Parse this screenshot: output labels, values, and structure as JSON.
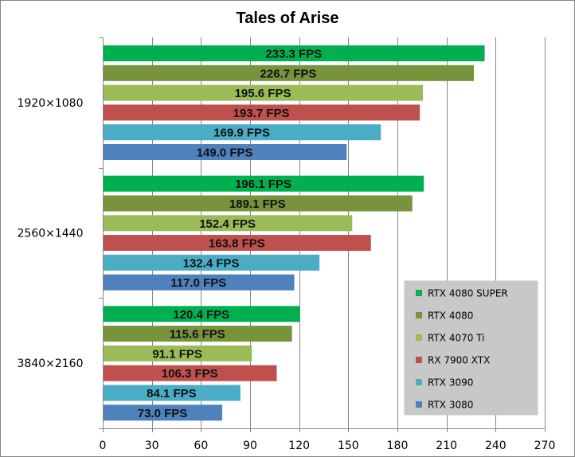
{
  "chart_data": {
    "type": "bar",
    "orientation": "horizontal",
    "title": "Tales of Arise",
    "xlabel": "",
    "ylabel": "",
    "xlim": [
      0,
      270
    ],
    "xticks": [
      0,
      30,
      60,
      90,
      120,
      150,
      180,
      210,
      240,
      270
    ],
    "grid": true,
    "legend_position": "bottom-right",
    "value_suffix": " FPS",
    "categories": [
      "1920×1080",
      "2560×1440",
      "3840×2160"
    ],
    "series": [
      {
        "name": "RTX 4080 SUPER",
        "color": "#00b050",
        "values": [
          233.3,
          196.1,
          120.4
        ]
      },
      {
        "name": "RTX 4080",
        "color": "#77933c",
        "values": [
          226.7,
          189.1,
          115.6
        ]
      },
      {
        "name": "RTX 4070 Ti",
        "color": "#9bbb59",
        "values": [
          195.6,
          152.4,
          91.1
        ]
      },
      {
        "name": "RX 7900 XTX",
        "color": "#c0504d",
        "values": [
          193.7,
          163.8,
          106.3
        ]
      },
      {
        "name": "RTX 3090",
        "color": "#4bacc6",
        "values": [
          169.9,
          132.4,
          84.1
        ]
      },
      {
        "name": "RTX 3080",
        "color": "#4f81bd",
        "values": [
          149.0,
          117.0,
          73.0
        ]
      }
    ]
  }
}
